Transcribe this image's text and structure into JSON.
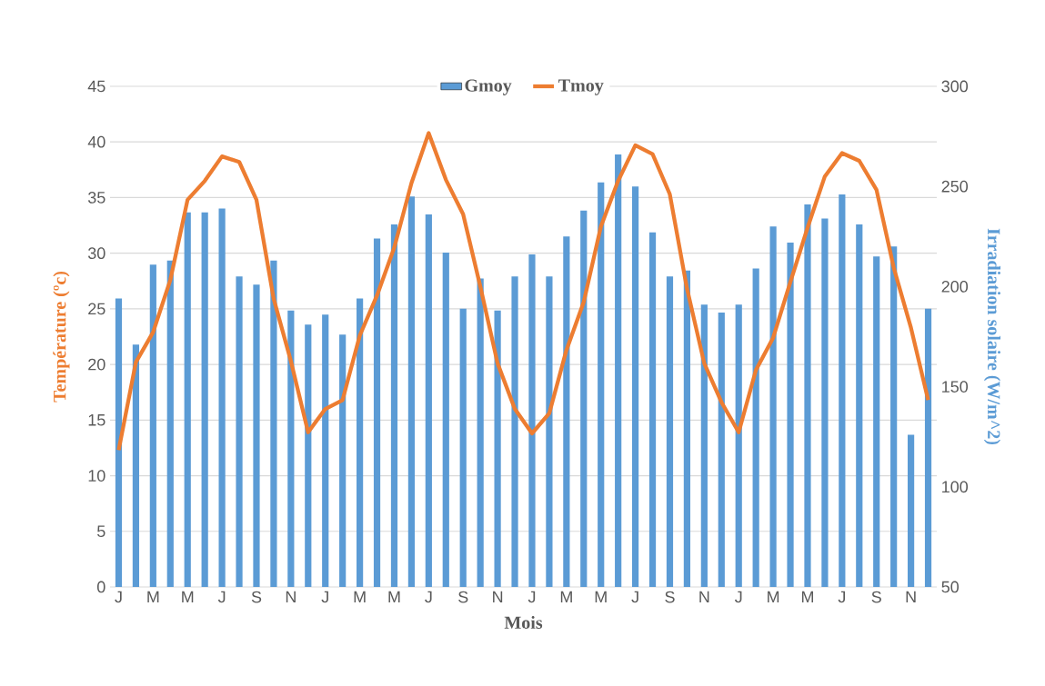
{
  "chart_data": {
    "type": "bar",
    "xlabel": "Mois",
    "ylabel": "Température (ºc)",
    "y2label": "Irradiation solaire (W/m^2)",
    "categories": [
      "J",
      null,
      "M",
      null,
      "M",
      null,
      "J",
      null,
      "S",
      null,
      "N",
      null,
      "J",
      null,
      "M",
      null,
      "M",
      null,
      "J",
      null,
      "S",
      null,
      "N",
      null,
      "J",
      null,
      "M",
      null,
      "M",
      null,
      "J",
      null,
      "S",
      null,
      "N",
      null,
      "J",
      null,
      "M",
      null,
      "M",
      null,
      "J",
      null,
      "S",
      null,
      "N",
      null
    ],
    "series": [
      {
        "name": "Gmoy",
        "axis": "y2",
        "color": "#5b9bd5",
        "values": [
          194,
          171,
          211,
          213,
          237,
          237,
          239,
          205,
          201,
          213,
          188,
          181,
          186,
          176,
          194,
          224,
          231,
          245,
          236,
          217,
          189,
          204,
          188,
          205,
          216,
          205,
          225,
          238,
          252,
          266,
          250,
          227,
          205,
          208,
          191,
          187,
          191,
          209,
          230,
          222,
          241,
          234,
          246,
          231,
          215,
          220,
          126,
          189
        ]
      },
      {
        "name": "Tmoy",
        "type": "line",
        "color": "#ed7d31",
        "values": [
          12.3,
          20.2,
          22.9,
          27.6,
          34.8,
          36.5,
          38.7,
          38.2,
          34.8,
          25.9,
          20.3,
          13.9,
          16.0,
          16.8,
          22.6,
          26.2,
          30.5,
          36.3,
          40.8,
          36.6,
          33.5,
          27.0,
          20.1,
          16.0,
          13.8,
          15.6,
          21.3,
          25.6,
          32.4,
          36.5,
          39.7,
          38.9,
          35.3,
          26.8,
          20.1,
          16.6,
          13.9,
          19.5,
          22.4,
          27.4,
          32.3,
          36.9,
          39.0,
          38.3,
          35.7,
          28.7,
          23.3,
          16.8
        ]
      }
    ],
    "ylim": [
      0,
      45
    ],
    "yticks": [
      0,
      5,
      10,
      15,
      20,
      25,
      30,
      35,
      40,
      45
    ],
    "y2lim": [
      50,
      300
    ],
    "y2ticks": [
      50,
      100,
      150,
      200,
      250,
      300
    ],
    "grid": "y",
    "legend": "top"
  }
}
